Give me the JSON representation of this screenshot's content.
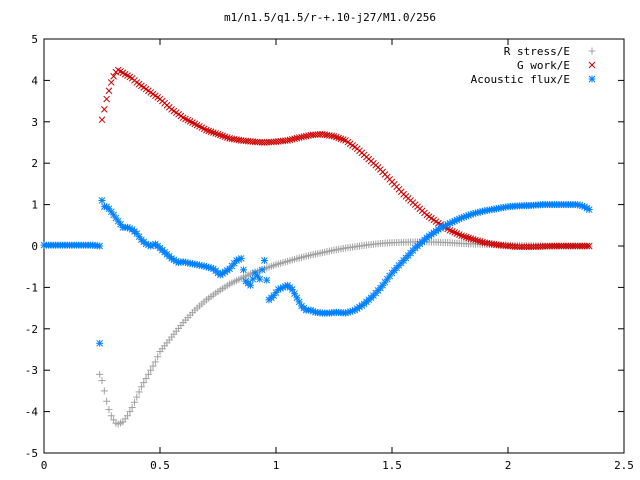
{
  "chart_data": {
    "type": "scatter",
    "title": "m1/n1.5/q1.5/r-+.10-j27/M1.0/256",
    "xlabel": "",
    "ylabel": "",
    "xlim": [
      0,
      2.5
    ],
    "ylim": [
      -5,
      5
    ],
    "xticks": [
      0,
      0.5,
      1,
      1.5,
      2,
      2.5
    ],
    "xtick_labels": [
      "0",
      "0.5",
      "1",
      "1.5",
      "2",
      "2.5"
    ],
    "yticks": [
      -5,
      -4,
      -3,
      -2,
      -1,
      0,
      1,
      2,
      3,
      4,
      5
    ],
    "ytick_labels": [
      "-5",
      "-4",
      "-3",
      "-2",
      "-1",
      "0",
      "1",
      "2",
      "3",
      "4",
      "5"
    ],
    "grid": false,
    "legend_position": "top-right",
    "series": [
      {
        "name": "R stress/E",
        "marker": "plus",
        "color": "#a0a0a0",
        "x": [
          0.24,
          0.25,
          0.26,
          0.27,
          0.28,
          0.29,
          0.3,
          0.31,
          0.32,
          0.34,
          0.36,
          0.38,
          0.4,
          0.42,
          0.45,
          0.48,
          0.5,
          0.55,
          0.6,
          0.65,
          0.7,
          0.75,
          0.8,
          0.85,
          0.9,
          0.95,
          1.0,
          1.05,
          1.1,
          1.15,
          1.2,
          1.25,
          1.3,
          1.35,
          1.4,
          1.45,
          1.5,
          1.55,
          1.6,
          1.65,
          1.7,
          1.75,
          1.8,
          1.85,
          1.9,
          1.95,
          2.0,
          2.05,
          2.1,
          2.15,
          2.2,
          2.25,
          2.3,
          2.35
        ],
        "y": [
          -3.1,
          -3.25,
          -3.5,
          -3.75,
          -3.95,
          -4.1,
          -4.2,
          -4.28,
          -4.3,
          -4.25,
          -4.1,
          -3.9,
          -3.65,
          -3.4,
          -3.1,
          -2.8,
          -2.55,
          -2.2,
          -1.85,
          -1.55,
          -1.3,
          -1.1,
          -0.92,
          -0.78,
          -0.65,
          -0.55,
          -0.45,
          -0.37,
          -0.29,
          -0.22,
          -0.16,
          -0.1,
          -0.05,
          -0.01,
          0.03,
          0.06,
          0.08,
          0.09,
          0.1,
          0.1,
          0.09,
          0.08,
          0.06,
          0.05,
          0.04,
          0.03,
          0.02,
          0.01,
          0.01,
          0.0,
          0.0,
          0.0,
          0.0,
          0.0
        ]
      },
      {
        "name": "G work/E",
        "marker": "cross",
        "color": "#cc0000",
        "x": [
          0.25,
          0.26,
          0.27,
          0.28,
          0.29,
          0.3,
          0.31,
          0.32,
          0.33,
          0.35,
          0.38,
          0.4,
          0.45,
          0.5,
          0.55,
          0.6,
          0.65,
          0.7,
          0.75,
          0.8,
          0.85,
          0.9,
          0.95,
          1.0,
          1.05,
          1.1,
          1.15,
          1.2,
          1.25,
          1.3,
          1.35,
          1.4,
          1.45,
          1.5,
          1.55,
          1.6,
          1.65,
          1.7,
          1.75,
          1.8,
          1.85,
          1.9,
          1.95,
          2.0,
          2.05,
          2.1,
          2.15,
          2.2,
          2.25,
          2.3,
          2.35
        ],
        "y": [
          3.05,
          3.3,
          3.55,
          3.75,
          3.95,
          4.1,
          4.2,
          4.25,
          4.22,
          4.15,
          4.05,
          3.95,
          3.75,
          3.55,
          3.3,
          3.1,
          2.95,
          2.8,
          2.7,
          2.6,
          2.55,
          2.52,
          2.5,
          2.52,
          2.55,
          2.62,
          2.68,
          2.7,
          2.65,
          2.55,
          2.35,
          2.1,
          1.85,
          1.55,
          1.25,
          1.0,
          0.75,
          0.55,
          0.38,
          0.25,
          0.16,
          0.08,
          0.03,
          0.0,
          -0.02,
          -0.02,
          -0.01,
          0.0,
          0.0,
          0.0,
          0.0
        ]
      },
      {
        "name": "Acoustic flux/E",
        "marker": "star",
        "color": "#0080ff",
        "x": [
          0.0,
          0.03,
          0.06,
          0.09,
          0.12,
          0.15,
          0.18,
          0.21,
          0.24,
          0.24,
          0.25,
          0.26,
          0.27,
          0.28,
          0.3,
          0.32,
          0.34,
          0.36,
          0.38,
          0.4,
          0.42,
          0.44,
          0.46,
          0.48,
          0.5,
          0.52,
          0.55,
          0.58,
          0.6,
          0.63,
          0.66,
          0.7,
          0.73,
          0.76,
          0.8,
          0.83,
          0.85,
          0.87,
          0.89,
          0.91,
          0.93,
          0.95,
          0.97,
          0.99,
          1.01,
          1.03,
          1.05,
          1.07,
          1.09,
          1.11,
          1.13,
          1.15,
          1.17,
          1.2,
          1.23,
          1.26,
          1.3,
          1.34,
          1.38,
          1.42,
          1.46,
          1.5,
          1.55,
          1.6,
          1.65,
          1.7,
          1.75,
          1.8,
          1.85,
          1.9,
          1.95,
          2.0,
          2.05,
          2.1,
          2.15,
          2.2,
          2.25,
          2.3,
          2.33,
          2.35
        ],
        "y": [
          0.02,
          0.02,
          0.02,
          0.02,
          0.02,
          0.02,
          0.02,
          0.02,
          0.0,
          -2.35,
          1.1,
          0.95,
          0.95,
          0.9,
          0.75,
          0.6,
          0.45,
          0.45,
          0.4,
          0.3,
          0.15,
          0.05,
          0.0,
          0.05,
          -0.05,
          -0.15,
          -0.3,
          -0.4,
          -0.38,
          -0.42,
          -0.45,
          -0.5,
          -0.55,
          -0.7,
          -0.55,
          -0.35,
          -0.3,
          -0.85,
          -0.95,
          -0.65,
          -0.8,
          -0.35,
          -1.3,
          -1.2,
          -1.05,
          -1.0,
          -0.95,
          -1.05,
          -1.25,
          -1.45,
          -1.55,
          -1.55,
          -1.6,
          -1.62,
          -1.62,
          -1.6,
          -1.62,
          -1.55,
          -1.4,
          -1.2,
          -0.95,
          -0.65,
          -0.35,
          -0.05,
          0.2,
          0.4,
          0.55,
          0.68,
          0.78,
          0.85,
          0.9,
          0.95,
          0.97,
          0.98,
          1.0,
          1.0,
          1.0,
          1.0,
          0.95,
          0.88
        ]
      }
    ]
  }
}
